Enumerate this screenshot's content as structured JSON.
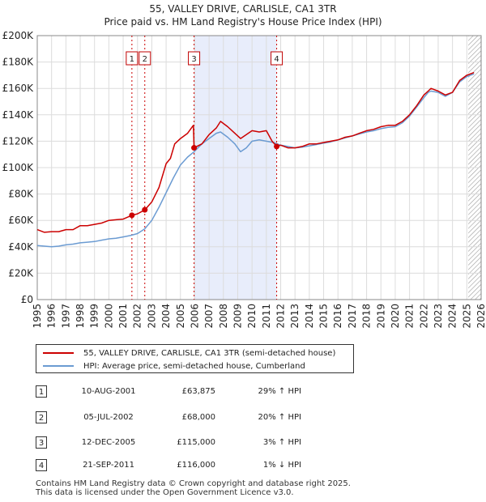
{
  "title_line1": "55, VALLEY DRIVE, CARLISLE, CA1 3TR",
  "title_line2": "Price paid vs. HM Land Registry's House Price Index (HPI)",
  "colors": {
    "property_line": "#cc0000",
    "hpi_line": "#6b9bd2",
    "shade": "#e8edfb",
    "marker_line": "#cc0000",
    "grid": "#dcdcdc"
  },
  "legend": {
    "property": "55, VALLEY DRIVE, CARLISLE, CA1 3TR (semi-detached house)",
    "hpi": "HPI: Average price, semi-detached house, Cumberland"
  },
  "transactions": [
    {
      "num": "1",
      "date": "10-AUG-2001",
      "price": "£63,875",
      "hpi": "29% ↑ HPI"
    },
    {
      "num": "2",
      "date": "05-JUL-2002",
      "price": "£68,000",
      "hpi": "20% ↑ HPI"
    },
    {
      "num": "3",
      "date": "12-DEC-2005",
      "price": "£115,000",
      "hpi": "3% ↑ HPI"
    },
    {
      "num": "4",
      "date": "21-SEP-2011",
      "price": "£116,000",
      "hpi": "1% ↓ HPI"
    }
  ],
  "footer": {
    "line1": "Contains HM Land Registry data © Crown copyright and database right 2025.",
    "line2": "This data is licensed under the Open Government Licence v3.0."
  },
  "chart_data": {
    "type": "line",
    "title": "Price paid vs. HM Land Registry's House Price Index (HPI)",
    "xlim": [
      1995,
      2026
    ],
    "ylim": [
      0,
      200000
    ],
    "x_ticks": [
      1995,
      1996,
      1997,
      1998,
      1999,
      2000,
      2001,
      2002,
      2003,
      2004,
      2005,
      2006,
      2007,
      2008,
      2009,
      2010,
      2011,
      2012,
      2013,
      2014,
      2015,
      2016,
      2017,
      2018,
      2019,
      2020,
      2021,
      2022,
      2023,
      2024,
      2025,
      2026
    ],
    "y_ticks": [
      {
        "value": 0,
        "label": "£0"
      },
      {
        "value": 20000,
        "label": "£20K"
      },
      {
        "value": 40000,
        "label": "£40K"
      },
      {
        "value": 60000,
        "label": "£60K"
      },
      {
        "value": 80000,
        "label": "£80K"
      },
      {
        "value": 100000,
        "label": "£100K"
      },
      {
        "value": 120000,
        "label": "£120K"
      },
      {
        "value": 140000,
        "label": "£140K"
      },
      {
        "value": 160000,
        "label": "£160K"
      },
      {
        "value": 180000,
        "label": "£180K"
      },
      {
        "value": 200000,
        "label": "£200K"
      }
    ],
    "shaded_range": [
      2005.95,
      2011.72
    ],
    "projection_from": 2025.1,
    "sales": [
      {
        "label": "1",
        "x": 2001.61,
        "y": 63875
      },
      {
        "label": "2",
        "x": 2002.51,
        "y": 68000
      },
      {
        "label": "3",
        "x": 2005.95,
        "y": 115000
      },
      {
        "label": "4",
        "x": 2011.72,
        "y": 116000
      }
    ],
    "series": [
      {
        "name": "55, VALLEY DRIVE, CARLISLE, CA1 3TR (semi-detached house)",
        "x": [
          1995,
          1995.5,
          1996,
          1996.5,
          1997,
          1997.5,
          1998,
          1998.5,
          1999,
          1999.5,
          2000,
          2000.5,
          2001,
          2001.61,
          2002,
          2002.51,
          2003,
          2003.5,
          2004,
          2004.3,
          2004.6,
          2005,
          2005.5,
          2005.9,
          2005.95,
          2006.5,
          2007,
          2007.5,
          2007.8,
          2008.3,
          2008.8,
          2009.2,
          2009.6,
          2010,
          2010.5,
          2011,
          2011.4,
          2011.72,
          2012,
          2012.5,
          2013,
          2013.5,
          2014,
          2014.5,
          2015,
          2015.5,
          2016,
          2016.5,
          2017,
          2017.5,
          2018,
          2018.5,
          2019,
          2019.5,
          2020,
          2020.5,
          2021,
          2021.5,
          2022,
          2022.3,
          2022.5,
          2023,
          2023.5,
          2024,
          2024.5,
          2025,
          2025.5
        ],
        "y": [
          53000,
          51000,
          51500,
          51500,
          53000,
          53000,
          56000,
          56000,
          57000,
          58000,
          60000,
          60500,
          61000,
          63875,
          65000,
          68000,
          74000,
          85000,
          103000,
          107000,
          118000,
          122000,
          126000,
          132000,
          115000,
          118000,
          125000,
          130000,
          135000,
          131000,
          126000,
          122000,
          125000,
          128000,
          127000,
          128000,
          120000,
          116000,
          117000,
          115000,
          115000,
          116000,
          118000,
          118000,
          119000,
          120000,
          121000,
          123000,
          124000,
          126000,
          128000,
          129000,
          131000,
          132000,
          132000,
          135000,
          140000,
          147000,
          155000,
          158000,
          160000,
          158000,
          155000,
          157000,
          166000,
          170000,
          172000
        ]
      },
      {
        "name": "HPI: Average price, semi-detached house, Cumberland",
        "x": [
          1995,
          1995.5,
          1996,
          1996.5,
          1997,
          1997.5,
          1998,
          1998.5,
          1999,
          1999.5,
          2000,
          2000.5,
          2001,
          2001.5,
          2002,
          2002.5,
          2003,
          2003.5,
          2004,
          2004.5,
          2005,
          2005.5,
          2005.95,
          2006.5,
          2007,
          2007.5,
          2007.8,
          2008.3,
          2008.8,
          2009.2,
          2009.6,
          2010,
          2010.5,
          2011,
          2011.5,
          2012,
          2012.5,
          2013,
          2013.5,
          2014,
          2014.5,
          2015,
          2015.5,
          2016,
          2016.5,
          2017,
          2017.5,
          2018,
          2018.5,
          2019,
          2019.5,
          2020,
          2020.5,
          2021,
          2021.5,
          2022,
          2022.3,
          2022.5,
          2023,
          2023.5,
          2024,
          2024.5,
          2025,
          2025.5
        ],
        "y": [
          41000,
          40500,
          40000,
          40500,
          41500,
          42000,
          43000,
          43500,
          44000,
          45000,
          46000,
          46500,
          47500,
          48500,
          50000,
          53500,
          60000,
          70000,
          81000,
          92000,
          102000,
          108000,
          112000,
          118000,
          122000,
          126000,
          127000,
          123000,
          118000,
          112000,
          115000,
          120000,
          121000,
          120000,
          119000,
          117000,
          116000,
          115000,
          115500,
          116500,
          117500,
          118500,
          119500,
          121000,
          122500,
          124000,
          125500,
          127000,
          128000,
          129500,
          130500,
          131000,
          134000,
          139000,
          146000,
          153000,
          157000,
          158000,
          157000,
          154000,
          157000,
          165000,
          169000,
          171000
        ]
      }
    ]
  }
}
